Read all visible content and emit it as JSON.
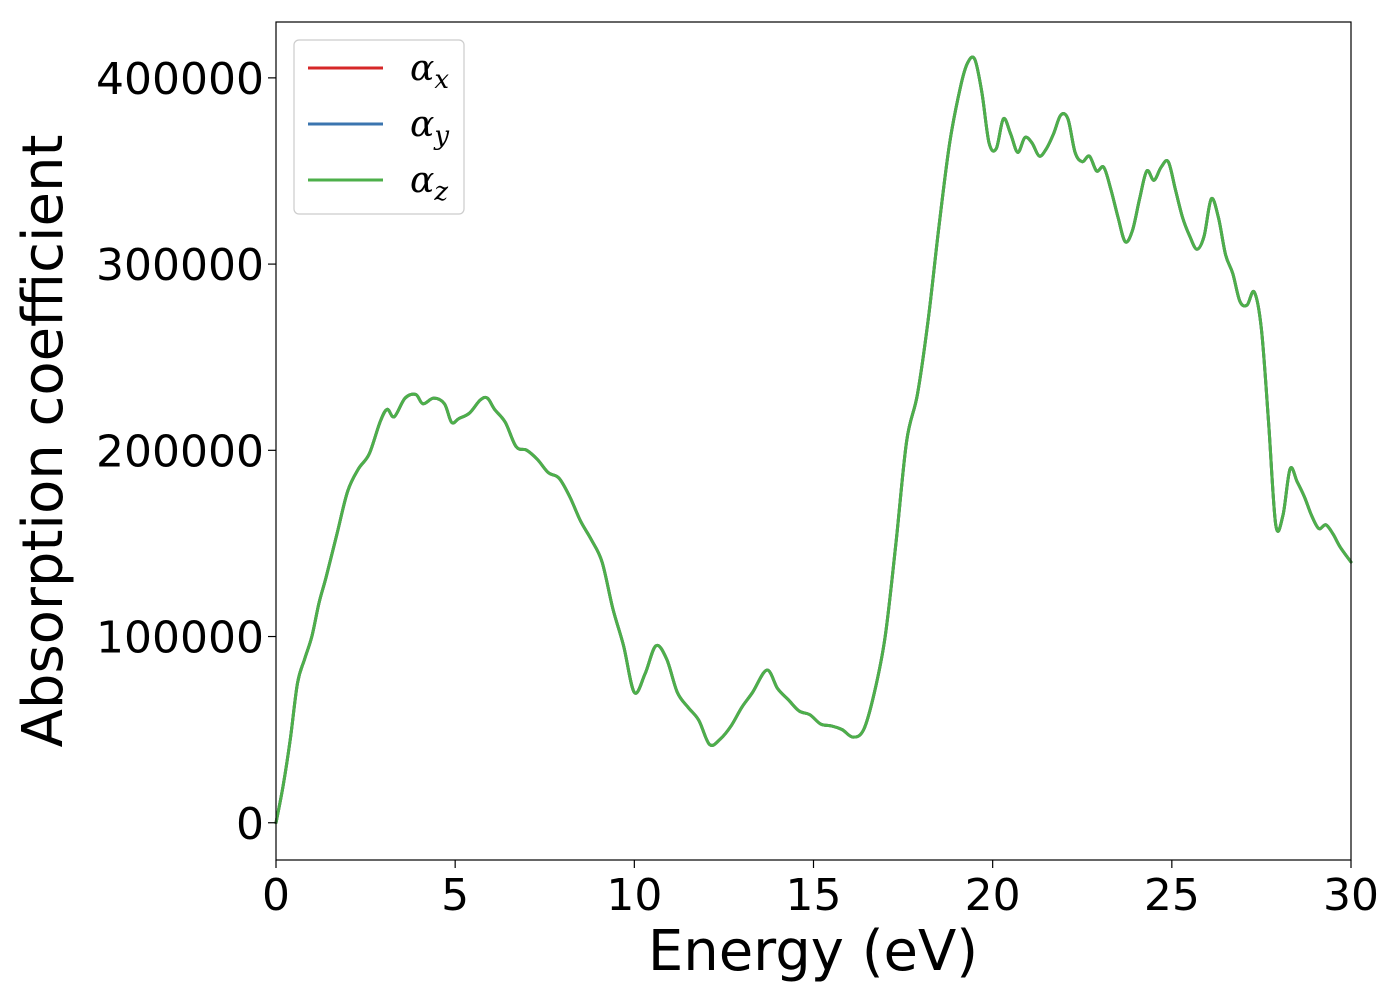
{
  "chart_data": {
    "type": "line",
    "title": "",
    "xlabel": "Energy (eV)",
    "ylabel": "Absorption coefficient",
    "xlim": [
      0,
      30
    ],
    "ylim": [
      -20000,
      430000
    ],
    "xticks": [
      0,
      5,
      10,
      15,
      20,
      25,
      30
    ],
    "yticks": [
      0,
      100000,
      200000,
      300000,
      400000
    ],
    "xtick_labels": [
      "0",
      "5",
      "10",
      "15",
      "20",
      "25",
      "30"
    ],
    "ytick_labels": [
      "0",
      "100000",
      "200000",
      "300000",
      "400000"
    ],
    "grid": false,
    "legend_placement": "top-left",
    "x": [
      0,
      0.2,
      0.4,
      0.6,
      0.8,
      1.0,
      1.2,
      1.4,
      1.7,
      2.0,
      2.3,
      2.6,
      2.9,
      3.1,
      3.3,
      3.6,
      3.9,
      4.1,
      4.4,
      4.7,
      4.9,
      5.1,
      5.4,
      5.7,
      5.9,
      6.1,
      6.4,
      6.7,
      7.0,
      7.3,
      7.6,
      7.9,
      8.2,
      8.5,
      8.8,
      9.1,
      9.4,
      9.7,
      10.0,
      10.3,
      10.6,
      10.9,
      11.2,
      11.5,
      11.8,
      12.1,
      12.4,
      12.7,
      13.0,
      13.3,
      13.7,
      14.0,
      14.3,
      14.6,
      14.9,
      15.2,
      15.5,
      15.8,
      16.1,
      16.4,
      16.7,
      17.0,
      17.3,
      17.6,
      17.9,
      18.2,
      18.5,
      18.8,
      19.1,
      19.3,
      19.5,
      19.7,
      19.9,
      20.1,
      20.3,
      20.5,
      20.7,
      20.9,
      21.1,
      21.3,
      21.5,
      21.7,
      21.9,
      22.1,
      22.3,
      22.5,
      22.7,
      22.9,
      23.1,
      23.3,
      23.5,
      23.7,
      23.9,
      24.1,
      24.3,
      24.5,
      24.7,
      24.9,
      25.1,
      25.3,
      25.5,
      25.7,
      25.9,
      26.1,
      26.3,
      26.5,
      26.7,
      26.9,
      27.1,
      27.3,
      27.5,
      27.7,
      27.9,
      28.1,
      28.3,
      28.5,
      28.7,
      28.9,
      29.1,
      29.3,
      29.5,
      29.7,
      30.0
    ],
    "series": [
      {
        "name": "α_x",
        "color": "#d62728",
        "values": [
          0,
          20000,
          45000,
          75000,
          88000,
          100000,
          118000,
          132000,
          155000,
          178000,
          190000,
          198000,
          215000,
          222000,
          218000,
          228000,
          230000,
          225000,
          228000,
          225000,
          215000,
          217000,
          220000,
          227000,
          228000,
          222000,
          215000,
          202000,
          200000,
          195000,
          188000,
          185000,
          175000,
          162000,
          152000,
          140000,
          115000,
          95000,
          70000,
          80000,
          95000,
          88000,
          70000,
          62000,
          55000,
          42000,
          45000,
          52000,
          62000,
          70000,
          82000,
          72000,
          66000,
          60000,
          58000,
          53000,
          52000,
          50000,
          46000,
          50000,
          70000,
          100000,
          150000,
          205000,
          230000,
          270000,
          320000,
          365000,
          395000,
          408000,
          410000,
          392000,
          365000,
          362000,
          378000,
          370000,
          360000,
          368000,
          365000,
          358000,
          362000,
          370000,
          380000,
          378000,
          360000,
          355000,
          358000,
          350000,
          352000,
          340000,
          325000,
          312000,
          318000,
          335000,
          350000,
          345000,
          352000,
          355000,
          340000,
          325000,
          315000,
          308000,
          315000,
          335000,
          325000,
          305000,
          295000,
          280000,
          278000,
          285000,
          265000,
          215000,
          160000,
          165000,
          190000,
          183000,
          175000,
          165000,
          158000,
          160000,
          155000,
          148000,
          140000
        ]
      },
      {
        "name": "α_y",
        "color": "#3b75af",
        "values": [
          0,
          20000,
          45000,
          75000,
          88000,
          100000,
          118000,
          132000,
          155000,
          178000,
          190000,
          198000,
          215000,
          222000,
          218000,
          228000,
          230000,
          225000,
          228000,
          225000,
          215000,
          217000,
          220000,
          227000,
          228000,
          222000,
          215000,
          202000,
          200000,
          195000,
          188000,
          185000,
          175000,
          162000,
          152000,
          140000,
          115000,
          95000,
          70000,
          80000,
          95000,
          88000,
          70000,
          62000,
          55000,
          42000,
          45000,
          52000,
          62000,
          70000,
          82000,
          72000,
          66000,
          60000,
          58000,
          53000,
          52000,
          50000,
          46000,
          50000,
          70000,
          100000,
          150000,
          205000,
          230000,
          270000,
          320000,
          365000,
          395000,
          408000,
          410000,
          392000,
          365000,
          362000,
          378000,
          370000,
          360000,
          368000,
          365000,
          358000,
          362000,
          370000,
          380000,
          378000,
          360000,
          355000,
          358000,
          350000,
          352000,
          340000,
          325000,
          312000,
          318000,
          335000,
          350000,
          345000,
          352000,
          355000,
          340000,
          325000,
          315000,
          308000,
          315000,
          335000,
          325000,
          305000,
          295000,
          280000,
          278000,
          285000,
          265000,
          215000,
          160000,
          165000,
          190000,
          183000,
          175000,
          165000,
          158000,
          160000,
          155000,
          148000,
          140000
        ]
      },
      {
        "name": "α_z",
        "color": "#4daf4a",
        "values": [
          0,
          20000,
          45000,
          75000,
          88000,
          100000,
          118000,
          132000,
          155000,
          178000,
          190000,
          198000,
          215000,
          222000,
          218000,
          228000,
          230000,
          225000,
          228000,
          225000,
          215000,
          217000,
          220000,
          227000,
          228000,
          222000,
          215000,
          202000,
          200000,
          195000,
          188000,
          185000,
          175000,
          162000,
          152000,
          140000,
          115000,
          95000,
          70000,
          80000,
          95000,
          88000,
          70000,
          62000,
          55000,
          42000,
          45000,
          52000,
          62000,
          70000,
          82000,
          72000,
          66000,
          60000,
          58000,
          53000,
          52000,
          50000,
          46000,
          50000,
          70000,
          100000,
          150000,
          205000,
          230000,
          270000,
          320000,
          365000,
          395000,
          408000,
          410000,
          392000,
          365000,
          362000,
          378000,
          370000,
          360000,
          368000,
          365000,
          358000,
          362000,
          370000,
          380000,
          378000,
          360000,
          355000,
          358000,
          350000,
          352000,
          340000,
          325000,
          312000,
          318000,
          335000,
          350000,
          345000,
          352000,
          355000,
          340000,
          325000,
          315000,
          308000,
          315000,
          335000,
          325000,
          305000,
          295000,
          280000,
          278000,
          285000,
          265000,
          215000,
          160000,
          165000,
          190000,
          183000,
          175000,
          165000,
          158000,
          160000,
          155000,
          148000,
          140000
        ]
      }
    ],
    "legend": [
      {
        "symbol": "α",
        "sub": "x",
        "color": "#d62728"
      },
      {
        "symbol": "α",
        "sub": "y",
        "color": "#3b75af"
      },
      {
        "symbol": "α",
        "sub": "z",
        "color": "#4daf4a"
      }
    ]
  }
}
